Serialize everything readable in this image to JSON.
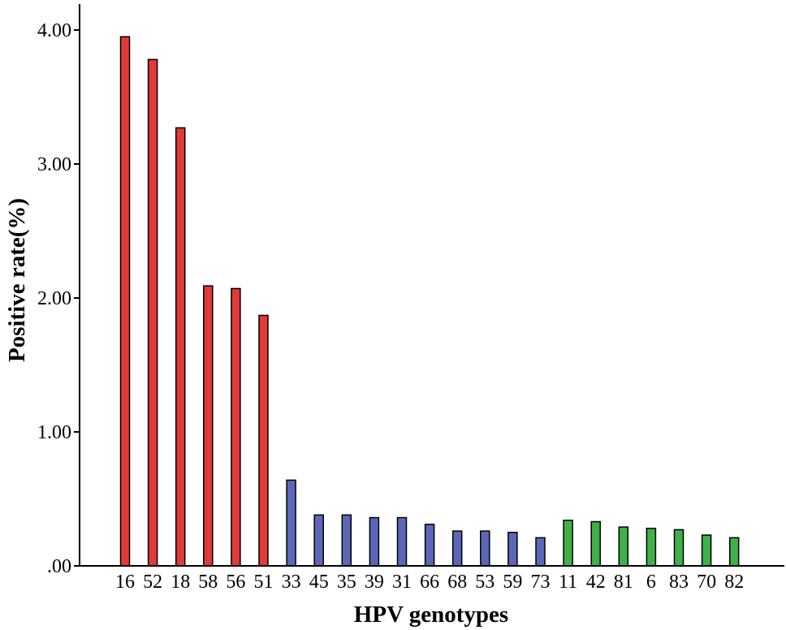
{
  "chart_data": {
    "type": "bar",
    "xlabel": "HPV genotypes",
    "ylabel": "Positive rate(%)",
    "ylim": [
      0,
      4.0
    ],
    "yticks": [
      ".00",
      "1.00",
      "2.00",
      "3.00",
      "4.00"
    ],
    "grid": false,
    "categories": [
      "16",
      "52",
      "18",
      "58",
      "56",
      "51",
      "33",
      "45",
      "35",
      "39",
      "31",
      "66",
      "68",
      "53",
      "59",
      "73",
      "11",
      "42",
      "81",
      "6",
      "83",
      "70",
      "82"
    ],
    "values": [
      3.95,
      3.78,
      3.27,
      2.09,
      2.07,
      1.87,
      0.64,
      0.38,
      0.38,
      0.36,
      0.36,
      0.31,
      0.26,
      0.26,
      0.25,
      0.21,
      0.34,
      0.33,
      0.29,
      0.28,
      0.27,
      0.23,
      0.21
    ],
    "bar_colors": [
      "#e03a3a",
      "#e03a3a",
      "#e03a3a",
      "#e03a3a",
      "#e03a3a",
      "#e03a3a",
      "#5b68b8",
      "#5b68b8",
      "#5b68b8",
      "#5b68b8",
      "#5b68b8",
      "#5b68b8",
      "#5b68b8",
      "#5b68b8",
      "#5b68b8",
      "#5b68b8",
      "#3fb14a",
      "#3fb14a",
      "#3fb14a",
      "#3fb14a",
      "#3fb14a",
      "#3fb14a",
      "#3fb14a"
    ]
  }
}
